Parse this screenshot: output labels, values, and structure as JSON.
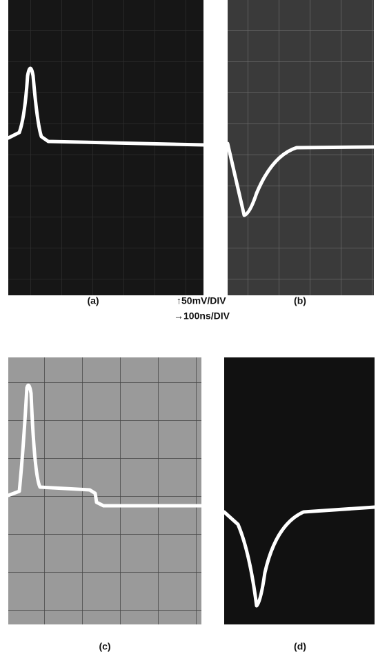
{
  "panels": [
    {
      "label": "(a)"
    },
    {
      "label": "(b)"
    },
    {
      "label": "(c)"
    },
    {
      "label": "(d)"
    }
  ],
  "scale": {
    "vertical": "↑50mV/DIV",
    "horizontal": "→100ns/DIV"
  }
}
